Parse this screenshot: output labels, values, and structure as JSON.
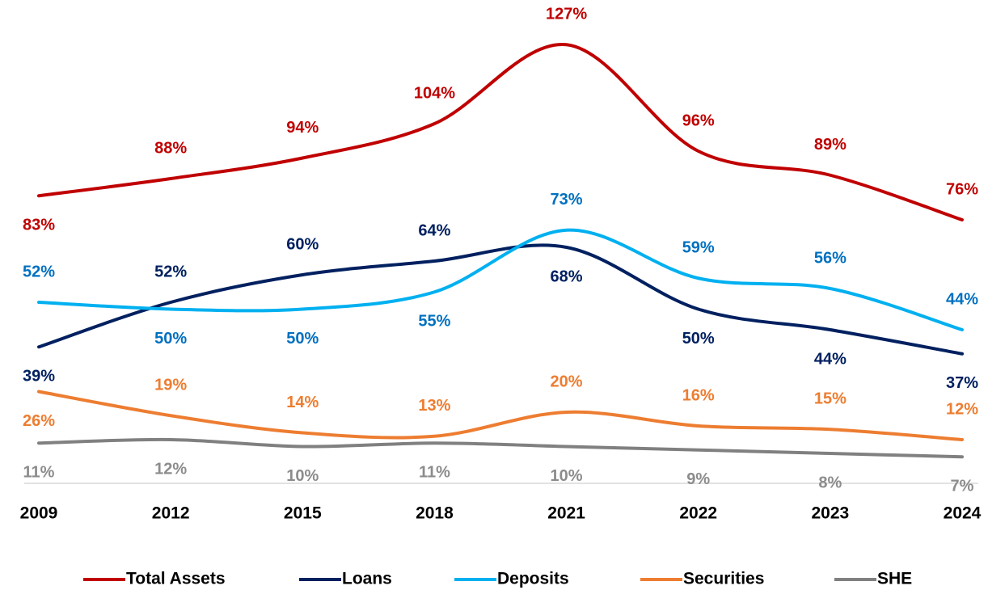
{
  "chart_data": {
    "type": "line",
    "categories": [
      "2009",
      "2012",
      "2015",
      "2018",
      "2021",
      "2022",
      "2023",
      "2024"
    ],
    "ylim": [
      0,
      130
    ],
    "legend": "bottom",
    "series": [
      {
        "name": "Total Assets",
        "color": "#c00000",
        "label_color": "#c00000",
        "values": [
          83,
          88,
          94,
          104,
          127,
          96,
          89,
          76
        ],
        "value_labels": [
          "83%",
          "88%",
          "94%",
          "104%",
          "127%",
          "96%",
          "89%",
          "76%"
        ]
      },
      {
        "name": "Loans",
        "color": "#002060",
        "label_color": "#002060",
        "values": [
          39,
          52,
          60,
          64,
          68,
          50,
          44,
          37
        ],
        "value_labels": [
          "39%",
          "52%",
          "60%",
          "64%",
          "68%",
          "50%",
          "44%",
          "37%"
        ]
      },
      {
        "name": "Deposits",
        "color": "#00b0f0",
        "label_color": "#0070c0",
        "values": [
          52,
          50,
          50,
          55,
          73,
          59,
          56,
          44
        ],
        "value_labels": [
          "52%",
          "50%",
          "50%",
          "55%",
          "73%",
          "59%",
          "56%",
          "44%"
        ]
      },
      {
        "name": "Securities",
        "color": "#ed7d31",
        "label_color": "#ed7d31",
        "values": [
          26,
          19,
          14,
          13,
          20,
          16,
          15,
          12
        ],
        "value_labels": [
          "26%",
          "19%",
          "14%",
          "13%",
          "20%",
          "16%",
          "15%",
          "12%"
        ]
      },
      {
        "name": "SHE",
        "color": "#808080",
        "label_color": "#8c8c8c",
        "values": [
          11,
          12,
          10,
          11,
          10,
          9,
          8,
          7
        ],
        "value_labels": [
          "11%",
          "12%",
          "10%",
          "11%",
          "10%",
          "9%",
          "8%",
          "7%"
        ]
      }
    ]
  }
}
